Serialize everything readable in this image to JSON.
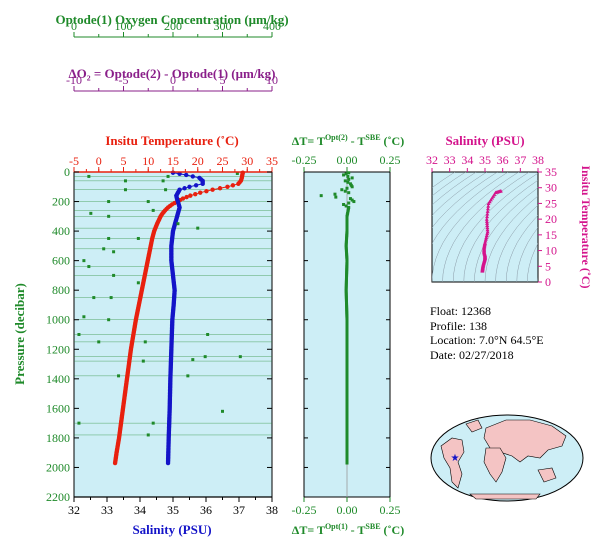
{
  "colors": {
    "green": "#1f8a2a",
    "purple": "#8a1f8a",
    "red": "#e8200f",
    "blue": "#1414c8",
    "magenta": "#d4148c",
    "panel_bg": "#cdeef6",
    "salinity_label": "#1414c8"
  },
  "info": {
    "float": "Float:  12368",
    "profile": "Profile:  138",
    "location": "Location:  7.0°N  64.5°E",
    "date": "Date:  02/27/2018"
  },
  "chart_data": [
    {
      "type": "scatter",
      "panel": "main",
      "ylabel": "Pressure (decibar)",
      "ylim": [
        2200,
        0
      ],
      "yticks": [
        0,
        200,
        400,
        600,
        800,
        1000,
        1200,
        1400,
        1600,
        1800,
        2000,
        2200
      ],
      "axes": {
        "salinity": {
          "label": "Salinity (PSU)",
          "range": [
            32,
            38
          ],
          "ticks": [
            32,
            33,
            34,
            35,
            36,
            37,
            38
          ]
        },
        "temperature": {
          "label": "Insitu Temperature (˚C)",
          "range": [
            -5,
            35
          ],
          "ticks": [
            -5,
            0,
            5,
            10,
            15,
            20,
            25,
            30,
            35
          ]
        },
        "oxygen": {
          "label": "Optode(1) Oxygen Concentration (μm/kg)",
          "range": [
            0,
            400
          ],
          "ticks": [
            0,
            100,
            200,
            300,
            400
          ]
        },
        "delta_o2": {
          "label": "ΔO₂ = Optode(2) - Optode(1)   (μm/kg)",
          "range": [
            -10,
            10
          ],
          "ticks": [
            -10,
            -5,
            0,
            5,
            10
          ]
        }
      },
      "series": [
        {
          "name": "Insitu Temperature",
          "axis": "temperature",
          "pressure": [
            5,
            20,
            40,
            60,
            80,
            100,
            120,
            140,
            160,
            180,
            200,
            220,
            240,
            260,
            280,
            300,
            350,
            400,
            450,
            500,
            600,
            700,
            800,
            900,
            1000,
            1100,
            1200,
            1300,
            1400,
            1500,
            1600,
            1700,
            1800,
            1900,
            1970
          ],
          "values": [
            29.1,
            29.0,
            28.9,
            28.7,
            28.2,
            26.0,
            23.0,
            20.5,
            18.5,
            17.0,
            15.8,
            14.8,
            14.0,
            13.4,
            12.9,
            12.5,
            11.8,
            11.2,
            10.8,
            10.5,
            9.9,
            9.3,
            8.7,
            8.1,
            7.5,
            7.0,
            6.5,
            6.1,
            5.7,
            5.3,
            4.9,
            4.5,
            4.1,
            3.6,
            3.3
          ]
        },
        {
          "name": "Salinity",
          "axis": "salinity",
          "pressure": [
            5,
            20,
            40,
            60,
            80,
            100,
            120,
            140,
            160,
            180,
            200,
            240,
            280,
            320,
            400,
            500,
            600,
            700,
            800,
            900,
            1000,
            1200,
            1400,
            1600,
            1800,
            1970
          ],
          "values": [
            35.0,
            35.4,
            35.8,
            35.9,
            35.9,
            35.5,
            35.2,
            35.15,
            35.1,
            35.12,
            35.15,
            35.2,
            35.15,
            35.1,
            35.0,
            34.95,
            34.95,
            35.0,
            35.05,
            35.02,
            34.98,
            34.95,
            34.92,
            34.9,
            34.87,
            34.85
          ]
        },
        {
          "name": "Optode(1) Oxygen Concentration",
          "axis": "oxygen",
          "pressure": [
            30,
            60,
            120,
            200,
            260,
            300,
            380,
            450,
            520,
            640,
            700,
            850,
            1000,
            1100,
            1150,
            1250,
            1280,
            1380,
            1700,
            1780
          ],
          "values": [
            190,
            180,
            185,
            150,
            160,
            70,
            250,
            70,
            60,
            30,
            80,
            75,
            70,
            270,
            50,
            265,
            140,
            230,
            160,
            150
          ]
        },
        {
          "name": "ΔO₂",
          "axis": "delta_o2",
          "pressure": [
            10,
            30,
            60,
            120,
            200,
            280,
            350,
            450,
            540,
            600,
            750,
            850,
            980,
            1100,
            1150,
            1250,
            1270,
            1380,
            1620,
            1700
          ],
          "values": [
            6.5,
            -8.5,
            -4.8,
            -4.8,
            -6.5,
            -8.3,
            0.5,
            -3.5,
            -6.0,
            -9.0,
            -3.5,
            -8.0,
            -9.0,
            -9.5,
            -2.8,
            6.8,
            2.0,
            -5.5,
            5.0,
            -9.5
          ]
        }
      ]
    },
    {
      "type": "scatter",
      "panel": "delta_t",
      "top_label": "ΔT= T^Opt(2) - T^SBE (˚C)",
      "bottom_label": "ΔT= T^Opt(1) - T^SBE (˚C)",
      "xlim": [
        -0.25,
        0.25
      ],
      "xticks": [
        -0.25,
        0.0,
        0.25
      ],
      "ylim": [
        2200,
        0
      ],
      "series": [
        {
          "name": "ΔT",
          "pressure": [
            5,
            20,
            40,
            60,
            80,
            100,
            120,
            140,
            160,
            180,
            200,
            220,
            240,
            300,
            400,
            500,
            600,
            800,
            1000,
            1200,
            1400,
            1600,
            1800,
            1970
          ],
          "values": [
            0.01,
            -0.02,
            0.03,
            -0.01,
            0.02,
            0.03,
            -0.03,
            0.01,
            -0.15,
            0.02,
            0.04,
            -0.02,
            0.01,
            0.0,
            0.0,
            -0.005,
            0.0,
            -0.005,
            0.0,
            0.0,
            0.0,
            0.0,
            0.0,
            0.0
          ]
        }
      ]
    },
    {
      "type": "scatter",
      "panel": "ts",
      "title": "Salinity (PSU)",
      "ylabel": "Insitu Temperature (˚C)",
      "xlim": [
        32,
        38
      ],
      "xticks": [
        32,
        33,
        34,
        35,
        36,
        37,
        38
      ],
      "ylim": [
        0,
        35
      ],
      "yticks": [
        0,
        5,
        10,
        15,
        20,
        25,
        30,
        35
      ],
      "series": [
        {
          "name": "T-S",
          "salinity": [
            35.9,
            35.6,
            35.2,
            35.1,
            35.15,
            35.0,
            34.95,
            34.95,
            35.0,
            35.0,
            34.95,
            34.9,
            34.87,
            34.85
          ],
          "temperature": [
            29.0,
            28.5,
            25.0,
            20.0,
            16.0,
            12.5,
            11.0,
            9.5,
            8.5,
            7.5,
            6.5,
            5.5,
            4.5,
            3.5
          ]
        }
      ]
    }
  ]
}
